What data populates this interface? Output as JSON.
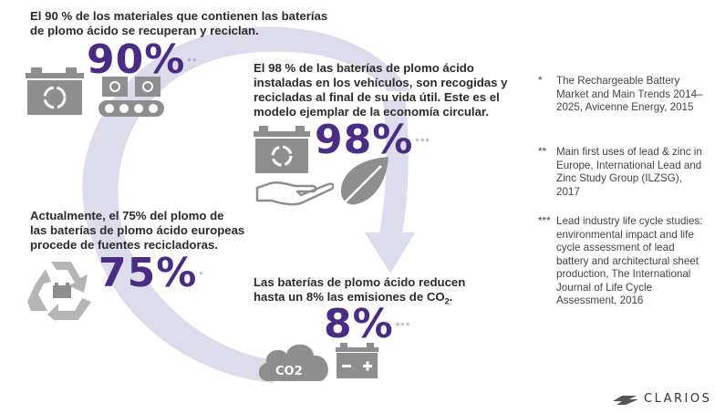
{
  "stats": {
    "s1": {
      "text_l1": "El 90 % de los materiales que contienen las baterías",
      "text_l2": "de plomo ácido se recuperan y reciclan.",
      "big": "90%",
      "mark": "**"
    },
    "s2": {
      "text_l1": "El 98 % de las baterías de plomo ácido",
      "text_l2": "instaladas en los vehículos, son recogidas y",
      "text_l3": "recicladas al final de su vida útil. Este es el",
      "text_l4": "modelo ejemplar de la economía circular.",
      "big": "98%",
      "mark": "***"
    },
    "s3": {
      "text_l1": "Actualmente, el 75% del plomo de",
      "text_l2": "las baterías de plomo ácido europeas",
      "text_l3": "procede de fuentes recicladoras.",
      "big": "75%",
      "mark": "*"
    },
    "s4": {
      "text_l1": "Las baterías de plomo ácido reducen",
      "text_l2a": "hasta un 8% las emisiones de CO",
      "text_l2b": "2",
      "text_l2c": ".",
      "big": "8%",
      "mark": "***"
    }
  },
  "co2_label": "CO2",
  "references": [
    {
      "mark": "*",
      "text": "The Rechargeable Battery Market and Main Trends 2014–2025, Avicenne Energy, 2015"
    },
    {
      "mark": "**",
      "text": "Main first uses of lead & zinc in Europe, International Lead and Zinc Study Group (ILZSG), 2017"
    },
    {
      "mark": "***",
      "text": "Lead industry life cycle studies: environmental impact and life cycle assessment of lead battery and architectural sheet production, The International Journal of Life Cycle Assessment, 2016"
    }
  ],
  "logo": {
    "text": "CLARIOS"
  },
  "colors": {
    "accent": "#4a2c84",
    "arrow": "#d9d9ea",
    "icon": "#8e8e8e",
    "icon_light": "#b5b5b5"
  },
  "icons": [
    "battery-icon",
    "battery-conveyor-icon",
    "recycle-battery-icon",
    "hand-icon",
    "leaf-icon",
    "recycle-arrows-icon",
    "co2-cloud-icon",
    "battery-minus-plus-icon",
    "clarios-logo-icon"
  ]
}
